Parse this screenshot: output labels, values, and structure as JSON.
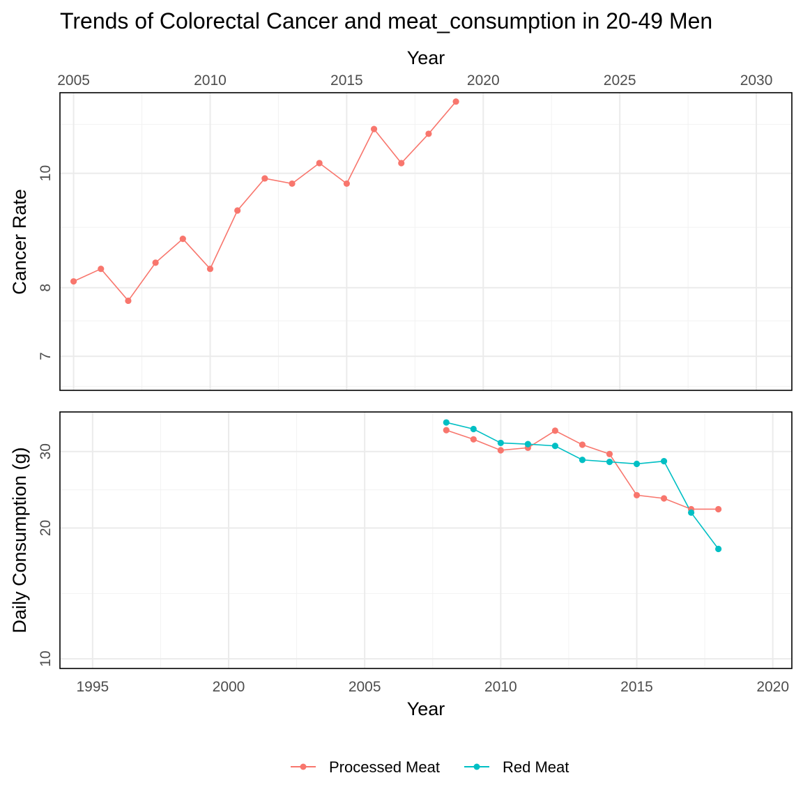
{
  "chart_data": {
    "type": "line",
    "title": "Trends of Colorectal Cancer and meat_consumption in 20-49 Men",
    "colors": {
      "processed": "#F8766D",
      "red": "#00BFC4"
    },
    "legend": {
      "position": "bottom",
      "items": [
        {
          "label": "Processed Meat",
          "color": "#F8766D"
        },
        {
          "label": "Red Meat",
          "color": "#00BFC4"
        }
      ]
    },
    "top_panel": {
      "x_axis_position": "top",
      "xlabel": "Year",
      "ylabel": "Cancer Rate",
      "y_scale": "log",
      "xlim": [
        2004.5,
        2031.3
      ],
      "ylim": [
        6.55,
        11.7
      ],
      "x_ticks": [
        2005,
        2010,
        2015,
        2020,
        2025,
        2030
      ],
      "y_ticks": [
        7,
        8,
        10
      ],
      "y_minor": [
        6.6,
        7.5,
        9,
        11
      ],
      "series": [
        {
          "color": "#F8766D",
          "x": [
            2005,
            2006,
            2007,
            2008,
            2009,
            2010,
            2011,
            2012,
            2013,
            2014,
            2015,
            2016,
            2017,
            2018,
            2019
          ],
          "y": [
            8.1,
            8.3,
            7.8,
            8.4,
            8.8,
            8.3,
            9.3,
            9.9,
            9.8,
            10.2,
            9.8,
            10.9,
            10.2,
            10.8,
            11.5
          ]
        }
      ]
    },
    "bottom_panel": {
      "x_axis_position": "bottom",
      "xlabel": "Year",
      "ylabel": "Daily Consumption (g)",
      "y_scale": "log",
      "xlim": [
        1993.8,
        2020.7
      ],
      "ylim": [
        9.5,
        37
      ],
      "x_ticks": [
        1995,
        2000,
        2005,
        2010,
        2015,
        2020
      ],
      "y_ticks": [
        10,
        20,
        30
      ],
      "y_minor": [
        14.14,
        24.49
      ],
      "series": [
        {
          "name": "Processed Meat",
          "color": "#F8766D",
          "x": [
            2008,
            2009,
            2010,
            2011,
            2012,
            2013,
            2014,
            2015,
            2016,
            2017,
            2018
          ],
          "y": [
            33.6,
            32,
            30.2,
            30.6,
            33.5,
            31.1,
            29.6,
            23.8,
            23.4,
            22.1,
            22.1
          ]
        },
        {
          "name": "Red Meat",
          "color": "#00BFC4",
          "x": [
            2008,
            2009,
            2010,
            2011,
            2012,
            2013,
            2014,
            2015,
            2016,
            2017,
            2018
          ],
          "y": [
            35,
            33.8,
            31.4,
            31.2,
            30.9,
            28.7,
            28.4,
            28.1,
            28.5,
            21.7,
            17.9
          ]
        }
      ]
    }
  }
}
